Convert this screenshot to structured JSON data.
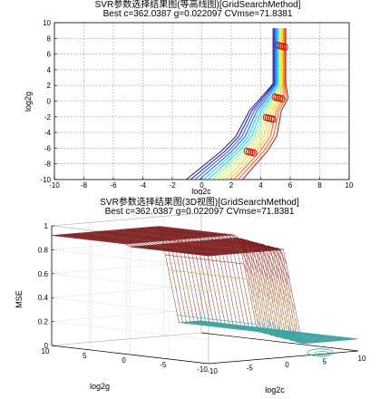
{
  "chart_data": [
    {
      "type": "contour",
      "title": "SVR参数选择结果图(等高线图)[GridSearchMethod]",
      "subtitle": "Best c=362.0387 g=0.022097 CVmse=71.8381",
      "xlabel": "log2c",
      "ylabel": "log2g",
      "xlim": [
        -10,
        10
      ],
      "ylim": [
        -10,
        10
      ],
      "xticks": [
        "-10",
        "-8",
        "-6",
        "-4",
        "-2",
        "0",
        "2",
        "4",
        "6",
        "8",
        "10"
      ],
      "yticks": [
        "-10",
        "-8",
        "-6",
        "-4",
        "-2",
        "0",
        "2",
        "4",
        "6",
        "8",
        "10"
      ],
      "grid": true,
      "contour_path": [
        [
          1.0,
          -10.0
        ],
        [
          2.0,
          -8.2
        ],
        [
          3.0,
          -6.4
        ],
        [
          3.8,
          -4.5
        ],
        [
          4.4,
          -1.2
        ],
        [
          5.0,
          0.4
        ],
        [
          5.3,
          2.2
        ],
        [
          5.3,
          5.0
        ],
        [
          5.3,
          7.0
        ],
        [
          5.3,
          9.3
        ]
      ],
      "colormap": [
        "#00008f",
        "#0050ff",
        "#00c8ff",
        "#50ffaa",
        "#c8ff40",
        "#ffc800",
        "#ff5000",
        "#b00000"
      ],
      "markers": [
        [
          3.3,
          -6.5
        ],
        [
          5.2,
          0.4
        ],
        [
          5.4,
          7.0
        ],
        [
          4.6,
          -2.2
        ]
      ]
    },
    {
      "type": "surface",
      "title": "SVR参数选择结果图(3D视图)[GridSearchMethod]",
      "subtitle": "Best c=362.0387 g=0.022097 CVmse=71.8381",
      "xlabel": "log2c",
      "ylabel": "log2g",
      "zlabel": "MSE",
      "zticks": [
        "0",
        "0.2",
        "0.4",
        "0.6",
        "0.8",
        "1"
      ],
      "xticks": [
        "-10",
        "-5",
        "0",
        "5",
        "10"
      ],
      "yticks": [
        "-10",
        "-5",
        "0",
        "5",
        "10"
      ],
      "plateau_value": 0.9,
      "valley_value": 0.1
    }
  ]
}
